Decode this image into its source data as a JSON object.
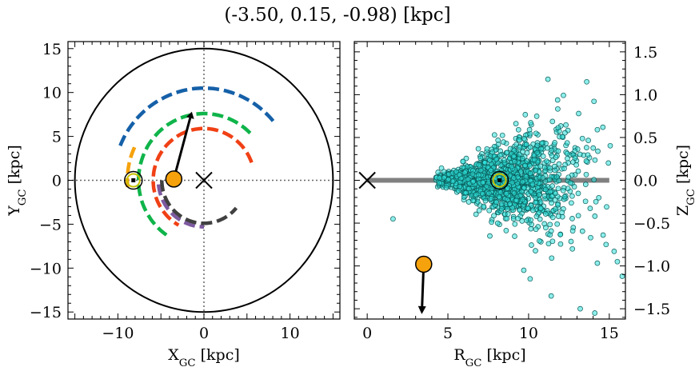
{
  "figure": {
    "title": "(-3.50, 0.15, -0.98) [kpc]"
  },
  "colors": {
    "arm_blue": "#1560a8",
    "arm_green": "#0fb44a",
    "arm_red": "#f04015",
    "arm_purple": "#7d5aa0",
    "arm_dark": "#404040",
    "arm_orange": "#f5a20c",
    "object": "#f5a20c",
    "stars": "#2de0d8",
    "disk": "#808080"
  },
  "chart_data": [
    {
      "type": "scatter",
      "panel": "top-view",
      "xlabel": "X_GC [kpc]",
      "ylabel": "Y_GC [kpc]",
      "xlim": [
        -15.8,
        15.8
      ],
      "ylim": [
        -15.8,
        15.8
      ],
      "xticks": [
        -10,
        0,
        10
      ],
      "yticks": [
        -15,
        -10,
        -5,
        0,
        5,
        10,
        15
      ],
      "grid": false,
      "disk_edge_radius": 15,
      "galactic_center": [
        0,
        0
      ],
      "sun": [
        -8.2,
        0
      ],
      "object": [
        -3.5,
        0.15
      ],
      "velocity_arrow_end": [
        -1.6,
        7.1
      ],
      "spiral_arms": [
        {
          "color_key": "arm_blue",
          "radius": 10.5,
          "from_deg": 40,
          "to_deg": 160
        },
        {
          "color_key": "arm_green",
          "radius": 7.6,
          "from_deg": 45,
          "to_deg": 235
        },
        {
          "color_key": "arm_red",
          "radius": 5.9,
          "from_deg": 20,
          "to_deg": 240
        },
        {
          "color_key": "arm_purple",
          "radius": 5.3,
          "from_deg": 185,
          "to_deg": 270
        },
        {
          "color_key": "arm_dark",
          "radius": 4.9,
          "from_deg": 180,
          "to_deg": 320
        },
        {
          "color_key": "arm_orange",
          "radius": 8.9,
          "from_deg": 155,
          "to_deg": 185
        }
      ]
    },
    {
      "type": "scatter",
      "panel": "side-view",
      "xlabel": "R_GC [kpc]",
      "ylabel": "Z_GC [kpc]",
      "xlim": [
        -0.8,
        16
      ],
      "ylim": [
        -1.62,
        1.62
      ],
      "xticks": [
        0,
        5,
        10,
        15
      ],
      "yticks": [
        -1.5,
        -1.0,
        -0.5,
        0.0,
        0.5,
        1.0,
        1.5
      ],
      "ytick_labels": [
        "−1.5",
        "−1.0",
        "−0.5",
        "0.0",
        "0.5",
        "1.0",
        "1.5"
      ],
      "grid": false,
      "disk_line": [
        [
          0,
          0
        ],
        [
          15,
          0
        ]
      ],
      "galactic_center": [
        0,
        0
      ],
      "sun": [
        8.2,
        0
      ],
      "object": [
        3.5,
        -0.98
      ],
      "velocity_arrow_end": [
        3.4,
        -1.47
      ],
      "star_sample_outliers": [
        [
          1.6,
          -0.45
        ],
        [
          11.2,
          1.18
        ],
        [
          13.6,
          1.15
        ],
        [
          14.8,
          -0.75
        ],
        [
          15.5,
          -0.95
        ],
        [
          15.8,
          -1.12
        ],
        [
          13.2,
          -1.5
        ],
        [
          14.1,
          -1.55
        ],
        [
          10.1,
          -1.15
        ],
        [
          11.4,
          -1.35
        ],
        [
          9.7,
          -1.05
        ],
        [
          14.6,
          0.62
        ],
        [
          13.1,
          0.78
        ],
        [
          7.6,
          -0.65
        ],
        [
          15.3,
          -0.83
        ]
      ]
    }
  ]
}
